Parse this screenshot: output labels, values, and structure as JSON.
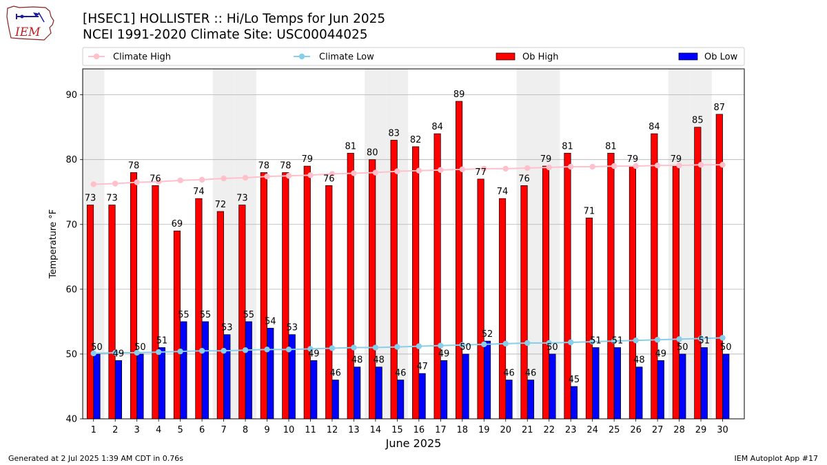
{
  "header": {
    "title_line1": "[HSEC1] HOLLISTER :: Hi/Lo Temps for Jun 2025",
    "title_line2": "NCEI 1991-2020 Climate Site: USC00044025",
    "logo_text": "IEM"
  },
  "footer": {
    "left": "Generated at 2 Jul 2025 1:39 AM CDT in 0.76s",
    "right": "IEM Autoplot App #17"
  },
  "colors": {
    "ob_high": "#ff0000",
    "ob_low": "#0000ff",
    "climate_high": "#ffc0cb",
    "climate_low": "#87ceeb",
    "weekend_shade": "#efefef",
    "grid": "#b0b0b0"
  },
  "chart_data": {
    "type": "bar",
    "xlabel": "June 2025",
    "ylabel": "Temperature °F",
    "ylim": [
      40,
      94
    ],
    "yticks": [
      40,
      50,
      60,
      70,
      80,
      90
    ],
    "grid": "horizontal",
    "legend_position": "top",
    "categories": [
      "1",
      "2",
      "3",
      "4",
      "5",
      "6",
      "7",
      "8",
      "9",
      "10",
      "11",
      "12",
      "13",
      "14",
      "15",
      "16",
      "17",
      "18",
      "19",
      "20",
      "21",
      "22",
      "23",
      "24",
      "25",
      "26",
      "27",
      "28",
      "29",
      "30"
    ],
    "shaded_days": [
      1,
      7,
      8,
      14,
      15,
      21,
      22,
      28,
      29
    ],
    "series": [
      {
        "name": "Ob High",
        "kind": "bar",
        "color": "#ff0000",
        "values": [
          73,
          73,
          78,
          76,
          69,
          74,
          72,
          73,
          78,
          78,
          79,
          76,
          81,
          80,
          83,
          82,
          84,
          89,
          77,
          74,
          76,
          79,
          81,
          71,
          81,
          79,
          84,
          79,
          85,
          87
        ]
      },
      {
        "name": "Ob Low",
        "kind": "bar",
        "color": "#0000ff",
        "values": [
          50,
          49,
          50,
          51,
          55,
          55,
          53,
          55,
          54,
          53,
          49,
          46,
          48,
          48,
          46,
          47,
          49,
          50,
          52,
          46,
          46,
          50,
          45,
          51,
          51,
          48,
          49,
          50,
          51,
          50
        ]
      },
      {
        "name": "Climate High",
        "kind": "line",
        "color": "#ffc0cb",
        "values": [
          76.2,
          76.3,
          76.5,
          76.6,
          76.8,
          76.9,
          77.1,
          77.2,
          77.4,
          77.5,
          77.6,
          77.8,
          77.9,
          78.0,
          78.2,
          78.3,
          78.4,
          78.5,
          78.6,
          78.6,
          78.7,
          78.8,
          78.9,
          78.9,
          79.0,
          79.0,
          79.1,
          79.1,
          79.2,
          79.2
        ]
      },
      {
        "name": "Climate Low",
        "kind": "line",
        "color": "#87ceeb",
        "values": [
          50.1,
          50.2,
          50.2,
          50.3,
          50.4,
          50.5,
          50.5,
          50.6,
          50.7,
          50.7,
          50.8,
          50.9,
          51.0,
          51.0,
          51.1,
          51.2,
          51.3,
          51.4,
          51.5,
          51.6,
          51.7,
          51.7,
          51.8,
          51.9,
          52.0,
          52.1,
          52.2,
          52.3,
          52.4,
          52.5
        ]
      }
    ]
  }
}
